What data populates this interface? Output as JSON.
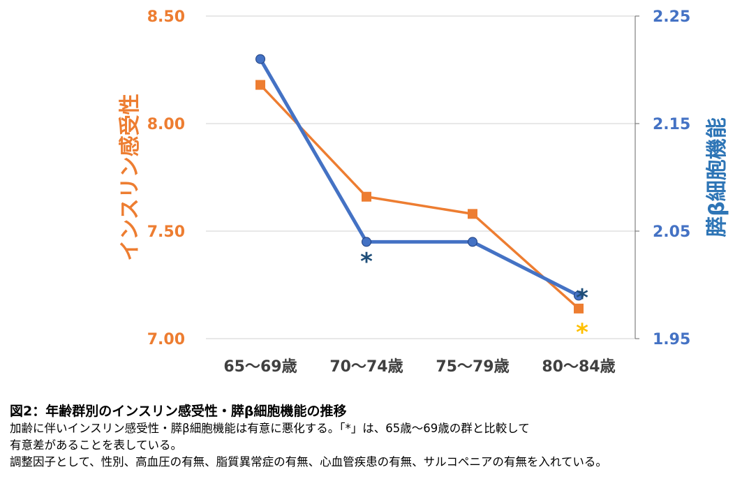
{
  "chart_data": {
    "type": "line",
    "categories": [
      "65〜69歳",
      "70〜74歳",
      "75〜79歳",
      "80〜84歳"
    ],
    "series": [
      {
        "name": "インスリン感受性",
        "axis": "left",
        "color": "#ED7D31",
        "marker": "square",
        "values": [
          8.18,
          7.66,
          7.58,
          7.14
        ]
      },
      {
        "name": "膵β細胞機能",
        "axis": "right",
        "color": "#4472C4",
        "marker": "circle",
        "values": [
          2.21,
          2.04,
          2.04,
          1.99
        ]
      }
    ],
    "left_axis": {
      "label": "インスリン感受性",
      "ylim": [
        7.0,
        8.5
      ],
      "ticks": [
        "7.00",
        "7.50",
        "8.00",
        "8.50"
      ],
      "color": "#ED7D31"
    },
    "right_axis": {
      "label": "膵β細胞機能",
      "ylim": [
        1.95,
        2.25
      ],
      "ticks": [
        "1.95",
        "2.05",
        "2.15",
        "2.25"
      ],
      "color": "#4472C4"
    },
    "grid": true,
    "annotations": [
      {
        "text": "*",
        "category_index": 1,
        "value": 2.03,
        "axis": "right",
        "color": "#1F4E79"
      },
      {
        "text": "*",
        "category_index": 3,
        "value": 1.996,
        "axis": "right",
        "color": "#1F4E79"
      },
      {
        "text": "*",
        "category_index": 3,
        "value": 7.07,
        "axis": "left",
        "color": "#FFC000"
      }
    ]
  },
  "caption": {
    "title": "図2：年齢群別のインスリン感受性・膵β細胞機能の推移",
    "lines": [
      "加齢に伴いインスリン感受性・膵β細胞機能は有意に悪化する。「*」は、65歳〜69歳の群と比較して",
      "有意差があることを表している。",
      "調整因子として、性別、高血圧の有無、脂質異常症の有無、心血管疾患の有無、サルコペニアの有無を入れている。"
    ]
  }
}
